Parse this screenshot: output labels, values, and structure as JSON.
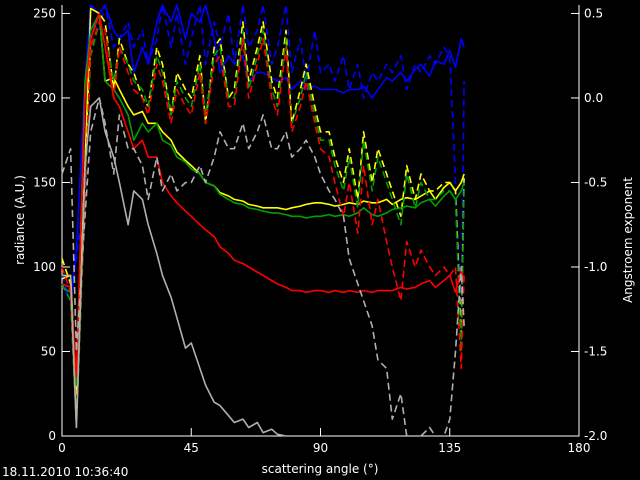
{
  "timestamp": "18.11.2010 10:36:40",
  "chart_data": {
    "type": "line",
    "title": "",
    "xlabel": "scattering angle (°)",
    "ylabel_left": "radiance (A.U.)",
    "ylabel_right": "Angstroem exponent",
    "xlim": [
      0,
      180
    ],
    "ylim_left": [
      0,
      255
    ],
    "ylim_right": [
      -2.0,
      0.55
    ],
    "xticks": [
      0,
      45,
      90,
      135,
      180
    ],
    "yticks_left": [
      0,
      50,
      100,
      150,
      200,
      250
    ],
    "yticks_right": [
      -2.0,
      -1.5,
      -1.0,
      -0.5,
      0.0,
      0.5
    ],
    "yticks_right_labels": [
      "-2.0",
      "-1.5",
      "-1.0",
      "-0.5",
      "0.0",
      "0.5"
    ],
    "grid": false,
    "series": [
      {
        "color": "#0000ff",
        "axis": "left",
        "style": "solid",
        "x": [
          0,
          3,
          5,
          8,
          10,
          13,
          15,
          18,
          20,
          23,
          25,
          28,
          30,
          33,
          35,
          38,
          40,
          43,
          45,
          48,
          50,
          53,
          55,
          58,
          60,
          63,
          65,
          68,
          70,
          73,
          75,
          78,
          80,
          83,
          85,
          88,
          90,
          93,
          95,
          98,
          100,
          103,
          105,
          108,
          110,
          113,
          115,
          118,
          120,
          123,
          125,
          128,
          130,
          133,
          135,
          137,
          139,
          140
        ],
        "y": [
          90,
          80,
          110,
          210,
          255,
          250,
          255,
          240,
          235,
          240,
          215,
          230,
          220,
          245,
          255,
          245,
          255,
          235,
          250,
          245,
          255,
          235,
          215,
          225,
          220,
          225,
          210,
          215,
          215,
          212,
          210,
          212,
          205,
          210,
          205,
          207,
          205,
          205,
          205,
          203,
          205,
          205,
          207,
          200,
          205,
          212,
          210,
          215,
          210,
          217,
          220,
          213,
          222,
          220,
          228,
          218,
          235,
          230
        ]
      },
      {
        "color": "#0000ff",
        "axis": "right",
        "style": "dash",
        "x": [
          0,
          3,
          5,
          8,
          10,
          13,
          15,
          18,
          20,
          23,
          25,
          28,
          30,
          33,
          35,
          38,
          40,
          43,
          45,
          48,
          50,
          53,
          55,
          58,
          60,
          63,
          65,
          68,
          70,
          73,
          75,
          78,
          80,
          83,
          85,
          88,
          90,
          93,
          95,
          98,
          100,
          103,
          105,
          108,
          110,
          113,
          115,
          118,
          120,
          123,
          125,
          128,
          130,
          133,
          135,
          137,
          139,
          140
        ],
        "y": [
          -1.05,
          -1.2,
          -0.95,
          -0.5,
          0.45,
          0.4,
          0.55,
          0.3,
          0.35,
          0.45,
          0.3,
          0.4,
          0.2,
          0.35,
          0.55,
          0.3,
          0.5,
          0.2,
          0.35,
          0.55,
          0.2,
          0.45,
          0.3,
          0.5,
          0.2,
          0.55,
          0.3,
          0.4,
          0.55,
          0.2,
          0.3,
          0.55,
          0.15,
          0.35,
          0.1,
          0.4,
          0.15,
          0.2,
          0.1,
          0.25,
          0.05,
          0.2,
          0.0,
          0.15,
          0.1,
          0.2,
          0.15,
          0.25,
          0.05,
          0.2,
          0.15,
          0.25,
          0.2,
          0.3,
          0.25,
          -0.5,
          -1.3,
          0.1
        ]
      },
      {
        "color": "#ffff00",
        "axis": "left",
        "style": "solid",
        "x": [
          0,
          3,
          5,
          8,
          10,
          13,
          15,
          18,
          20,
          23,
          25,
          28,
          30,
          33,
          35,
          38,
          40,
          43,
          45,
          48,
          50,
          53,
          55,
          58,
          60,
          63,
          65,
          68,
          70,
          73,
          75,
          78,
          80,
          83,
          85,
          88,
          90,
          93,
          95,
          98,
          100,
          103,
          105,
          108,
          110,
          113,
          115,
          118,
          120,
          123,
          125,
          128,
          130,
          133,
          135,
          137,
          139,
          140
        ],
        "y": [
          93,
          95,
          25,
          160,
          253,
          250,
          210,
          212,
          205,
          195,
          190,
          192,
          185,
          185,
          180,
          175,
          168,
          163,
          160,
          155,
          150,
          148,
          144,
          142,
          140,
          139,
          137,
          136,
          135,
          135,
          135,
          134,
          135,
          136,
          137,
          138,
          138,
          137,
          136,
          137,
          138,
          137,
          139,
          138,
          138,
          140,
          137,
          140,
          141,
          140,
          142,
          145,
          140,
          147,
          150,
          145,
          150,
          155
        ]
      },
      {
        "color": "#ffff00",
        "axis": "right",
        "style": "dash",
        "x": [
          0,
          3,
          5,
          8,
          10,
          13,
          15,
          18,
          20,
          23,
          25,
          28,
          30,
          33,
          35,
          38,
          40,
          43,
          45,
          48,
          50,
          53,
          55,
          58,
          60,
          63,
          65,
          68,
          70,
          73,
          75,
          78,
          80,
          83,
          85,
          88,
          90,
          93,
          95,
          98,
          100,
          103,
          105,
          108,
          110,
          113,
          115,
          118,
          120,
          123,
          125,
          128,
          130,
          133,
          135,
          137,
          139,
          140
        ],
        "y": [
          -0.95,
          -1.1,
          -1.9,
          -0.4,
          0.35,
          0.5,
          0.45,
          0.05,
          0.35,
          0.2,
          0.15,
          0.0,
          -0.05,
          0.3,
          0.2,
          -0.1,
          0.15,
          0.05,
          0.0,
          0.25,
          -0.15,
          0.3,
          0.35,
          0.0,
          0.05,
          0.45,
          0.1,
          0.3,
          0.45,
          0.1,
          0.0,
          0.4,
          -0.15,
          0.05,
          0.2,
          -0.05,
          -0.2,
          -0.2,
          -0.35,
          -0.5,
          -0.3,
          -0.6,
          -0.2,
          -0.5,
          -0.3,
          -0.45,
          -0.55,
          -0.7,
          -0.4,
          -0.6,
          -0.45,
          -0.55,
          -0.55,
          -0.5,
          -0.5,
          -0.55,
          -1.4,
          -0.45
        ]
      },
      {
        "color": "#00a000",
        "axis": "left",
        "style": "solid",
        "x": [
          0,
          3,
          5,
          8,
          10,
          13,
          15,
          18,
          20,
          23,
          25,
          28,
          30,
          33,
          35,
          38,
          40,
          43,
          45,
          48,
          50,
          53,
          55,
          58,
          60,
          63,
          65,
          68,
          70,
          73,
          75,
          78,
          80,
          83,
          85,
          88,
          90,
          93,
          95,
          98,
          100,
          103,
          105,
          108,
          110,
          113,
          115,
          118,
          120,
          123,
          125,
          128,
          130,
          133,
          135,
          137,
          139,
          140
        ],
        "y": [
          88,
          85,
          30,
          210,
          240,
          250,
          210,
          205,
          200,
          190,
          175,
          185,
          180,
          185,
          175,
          172,
          165,
          162,
          158,
          155,
          150,
          148,
          143,
          140,
          138,
          137,
          135,
          134,
          133,
          132,
          132,
          131,
          130,
          130,
          129,
          130,
          130,
          131,
          130,
          131,
          130,
          132,
          135,
          131,
          130,
          132,
          134,
          135,
          136,
          135,
          138,
          140,
          136,
          142,
          145,
          140,
          145,
          150
        ]
      },
      {
        "color": "#00a000",
        "axis": "right",
        "style": "dash",
        "x": [
          0,
          3,
          5,
          8,
          10,
          13,
          15,
          18,
          20,
          23,
          25,
          28,
          30,
          33,
          35,
          38,
          40,
          43,
          45,
          48,
          50,
          53,
          55,
          58,
          60,
          63,
          65,
          68,
          70,
          73,
          75,
          78,
          80,
          83,
          85,
          88,
          90,
          93,
          95,
          98,
          100,
          103,
          105,
          108,
          110,
          113,
          115,
          118,
          120,
          123,
          125,
          128,
          130,
          133,
          135,
          137,
          139,
          140
        ],
        "y": [
          -1.1,
          -1.2,
          -1.95,
          -0.6,
          0.25,
          0.45,
          0.4,
          0.1,
          0.3,
          0.2,
          0.1,
          0.05,
          -0.05,
          0.25,
          0.15,
          -0.1,
          0.1,
          0.0,
          -0.05,
          0.2,
          -0.1,
          0.25,
          0.3,
          0.0,
          0.0,
          0.4,
          0.05,
          0.25,
          0.4,
          0.05,
          -0.05,
          0.35,
          -0.15,
          0.0,
          0.15,
          -0.1,
          -0.25,
          -0.25,
          -0.4,
          -0.55,
          -0.35,
          -0.65,
          -0.25,
          -0.55,
          -0.35,
          -0.5,
          -0.6,
          -0.75,
          -0.45,
          -0.65,
          -0.5,
          -0.6,
          -0.6,
          -0.55,
          -0.55,
          -0.6,
          -1.5,
          -0.5
        ]
      },
      {
        "color": "#ff0000",
        "axis": "left",
        "style": "solid",
        "x": [
          0,
          3,
          5,
          8,
          10,
          13,
          15,
          18,
          20,
          23,
          25,
          28,
          30,
          33,
          35,
          38,
          40,
          43,
          45,
          48,
          50,
          53,
          55,
          58,
          60,
          63,
          65,
          68,
          70,
          73,
          75,
          78,
          80,
          83,
          85,
          88,
          90,
          93,
          95,
          98,
          100,
          103,
          105,
          108,
          110,
          113,
          115,
          118,
          120,
          123,
          125,
          128,
          130,
          133,
          135,
          137,
          139,
          140
        ],
        "y": [
          90,
          88,
          35,
          200,
          235,
          250,
          230,
          200,
          195,
          180,
          170,
          175,
          165,
          165,
          150,
          142,
          138,
          133,
          130,
          125,
          122,
          118,
          112,
          108,
          104,
          102,
          100,
          97,
          95,
          92,
          90,
          88,
          86,
          86,
          85,
          86,
          86,
          85,
          86,
          85,
          86,
          85,
          86,
          85,
          86,
          86,
          86,
          88,
          87,
          88,
          90,
          92,
          88,
          92,
          95,
          85,
          98,
          92
        ]
      },
      {
        "color": "#ff0000",
        "axis": "right",
        "style": "dash",
        "x": [
          0,
          3,
          5,
          8,
          10,
          13,
          15,
          18,
          20,
          23,
          25,
          28,
          30,
          33,
          35,
          38,
          40,
          43,
          45,
          48,
          50,
          53,
          55,
          58,
          60,
          63,
          65,
          68,
          70,
          73,
          75,
          78,
          80,
          83,
          85,
          88,
          90,
          93,
          95,
          98,
          100,
          103,
          105,
          108,
          110,
          113,
          115,
          118,
          120,
          123,
          125,
          128,
          130,
          133,
          135,
          137,
          139,
          140
        ],
        "y": [
          -1.0,
          -1.15,
          -1.9,
          -0.55,
          0.3,
          0.45,
          0.4,
          0.0,
          0.3,
          0.15,
          0.05,
          0.0,
          -0.1,
          0.2,
          0.1,
          -0.15,
          0.05,
          -0.05,
          -0.1,
          0.15,
          -0.15,
          0.2,
          0.25,
          -0.05,
          -0.05,
          0.35,
          0.0,
          0.2,
          0.35,
          0.0,
          -0.1,
          0.3,
          -0.2,
          -0.05,
          0.1,
          -0.15,
          -0.3,
          -0.35,
          -0.5,
          -0.7,
          -0.5,
          -0.8,
          -0.4,
          -0.75,
          -0.6,
          -0.85,
          -1.0,
          -1.2,
          -0.85,
          -1.0,
          -0.9,
          -1.0,
          -1.05,
          -1.0,
          -1.05,
          -1.0,
          -1.6,
          -1.05
        ]
      },
      {
        "color": "#b0b0b0",
        "axis": "left",
        "style": "solid",
        "x": [
          0,
          3,
          5,
          8,
          10,
          13,
          15,
          18,
          20,
          23,
          25,
          28,
          30,
          33,
          35,
          38,
          40,
          43,
          45,
          48,
          50,
          53,
          55,
          58,
          60,
          63,
          65,
          68,
          70,
          73,
          75,
          78
        ],
        "y": [
          95,
          95,
          5,
          160,
          195,
          200,
          180,
          165,
          150,
          125,
          145,
          140,
          125,
          108,
          95,
          82,
          70,
          52,
          55,
          40,
          30,
          20,
          18,
          12,
          8,
          10,
          5,
          8,
          2,
          4,
          1,
          0
        ]
      },
      {
        "color": "#b0b0b0",
        "axis": "right",
        "style": "dash",
        "x": [
          0,
          3,
          5,
          8,
          10,
          13,
          15,
          18,
          20,
          23,
          25,
          28,
          30,
          33,
          35,
          38,
          40,
          43,
          45,
          48,
          50,
          53,
          55,
          58,
          60,
          63,
          65,
          68,
          70,
          73,
          75,
          78,
          80,
          83,
          85,
          88,
          90,
          93,
          95,
          98,
          100,
          103,
          105,
          108,
          110,
          113,
          115,
          118,
          120,
          123,
          125,
          128,
          130,
          133,
          135,
          137,
          139,
          140
        ],
        "y": [
          -0.45,
          -0.3,
          -1.5,
          -0.7,
          -0.2,
          0.0,
          -0.15,
          -0.45,
          -0.1,
          -0.3,
          -0.3,
          -0.4,
          -0.6,
          -0.35,
          -0.55,
          -0.45,
          -0.55,
          -0.5,
          -0.5,
          -0.4,
          -0.5,
          -0.35,
          -0.2,
          -0.3,
          -0.3,
          -0.15,
          -0.3,
          -0.2,
          -0.1,
          -0.3,
          -0.3,
          -0.2,
          -0.35,
          -0.3,
          -0.25,
          -0.35,
          -0.45,
          -0.55,
          -0.6,
          -0.7,
          -0.95,
          -1.1,
          -1.2,
          -1.35,
          -1.55,
          -1.6,
          -1.9,
          -1.75,
          -2.0,
          -2.0,
          -2.0,
          -1.95,
          -2.0,
          -2.0,
          -1.9,
          -1.5,
          -1.0,
          -1.35
        ]
      }
    ]
  }
}
